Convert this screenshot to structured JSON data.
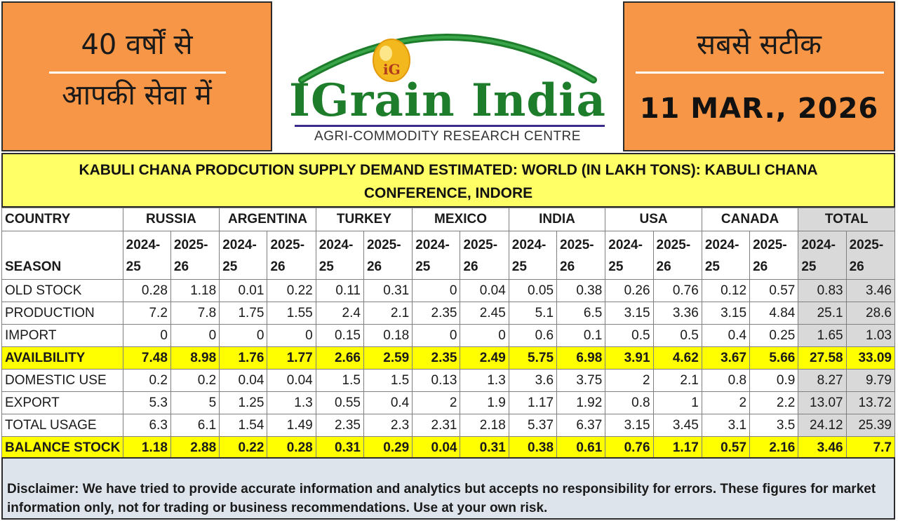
{
  "header": {
    "left_line1": "40 वर्षों से",
    "left_line2": "आपकी सेवा में",
    "right_line1": "सबसे सटीक",
    "date": "11 MAR., 2026"
  },
  "logo": {
    "emblem_text": "iG",
    "brand": "IGrain India",
    "tagline": "AGRI-COMMODITY RESEARCH CENTRE"
  },
  "title": {
    "line1": "KABULI CHANA PRODCUTION SUPPLY DEMAND ESTIMATED: WORLD (IN LAKH TONS): KABULI CHANA",
    "line2": "CONFERENCE, INDORE"
  },
  "table": {
    "country_header": "COUNTRY",
    "season_header": "SEASON",
    "countries": [
      "RUSSIA",
      "ARGENTINA",
      "TURKEY",
      "MEXICO",
      "INDIA",
      "USA",
      "CANADA",
      "TOTAL"
    ],
    "seasons": [
      "2024-25",
      "2025-26"
    ],
    "rows": [
      {
        "label": "OLD STOCK",
        "highlight": false,
        "values": [
          "0.28",
          "1.18",
          "0.01",
          "0.22",
          "0.11",
          "0.31",
          "0",
          "0.04",
          "0.05",
          "0.38",
          "0.26",
          "0.76",
          "0.12",
          "0.57",
          "0.83",
          "3.46"
        ]
      },
      {
        "label": "PRODUCTION",
        "highlight": false,
        "values": [
          "7.2",
          "7.8",
          "1.75",
          "1.55",
          "2.4",
          "2.1",
          "2.35",
          "2.45",
          "5.1",
          "6.5",
          "3.15",
          "3.36",
          "3.15",
          "4.84",
          "25.1",
          "28.6"
        ]
      },
      {
        "label": "IMPORT",
        "highlight": false,
        "values": [
          "0",
          "0",
          "0",
          "0",
          "0.15",
          "0.18",
          "0",
          "0",
          "0.6",
          "0.1",
          "0.5",
          "0.5",
          "0.4",
          "0.25",
          "1.65",
          "1.03"
        ]
      },
      {
        "label": "AVAILBILITY",
        "highlight": true,
        "values": [
          "7.48",
          "8.98",
          "1.76",
          "1.77",
          "2.66",
          "2.59",
          "2.35",
          "2.49",
          "5.75",
          "6.98",
          "3.91",
          "4.62",
          "3.67",
          "5.66",
          "27.58",
          "33.09"
        ]
      },
      {
        "label": "DOMESTIC USE",
        "highlight": false,
        "values": [
          "0.2",
          "0.2",
          "0.04",
          "0.04",
          "1.5",
          "1.5",
          "0.13",
          "1.3",
          "3.6",
          "3.75",
          "2",
          "2.1",
          "0.8",
          "0.9",
          "8.27",
          "9.79"
        ]
      },
      {
        "label": "EXPORT",
        "highlight": false,
        "values": [
          "5.3",
          "5",
          "1.25",
          "1.3",
          "0.55",
          "0.4",
          "2",
          "1.9",
          "1.17",
          "1.92",
          "0.8",
          "1",
          "2",
          "2.2",
          "13.07",
          "13.72"
        ]
      },
      {
        "label": "TOTAL USAGE",
        "highlight": false,
        "values": [
          "6.3",
          "6.1",
          "1.54",
          "1.49",
          "2.35",
          "2.3",
          "2.31",
          "2.18",
          "5.37",
          "6.37",
          "3.15",
          "3.45",
          "3.1",
          "3.5",
          "24.12",
          "25.39"
        ]
      },
      {
        "label": "BALANCE STOCK",
        "highlight": true,
        "values": [
          "1.18",
          "2.88",
          "0.22",
          "0.28",
          "0.31",
          "0.29",
          "0.04",
          "0.31",
          "0.38",
          "0.61",
          "0.76",
          "1.17",
          "0.57",
          "2.16",
          "3.46",
          "7.7"
        ]
      }
    ]
  },
  "disclaimer": "Disclaimer: We have tried to provide accurate information and analytics but accepts no responsibility for errors. These figures for market information only, not for trading or business recommendations. Use at your own risk.",
  "colors": {
    "header_orange": "#f79646",
    "title_yellow": "#ffff66",
    "highlight_yellow": "#ffff00",
    "total_gray": "#d9d9d9",
    "brand_green": "#1e7d2b",
    "footer_bg": "#dde4ec"
  }
}
